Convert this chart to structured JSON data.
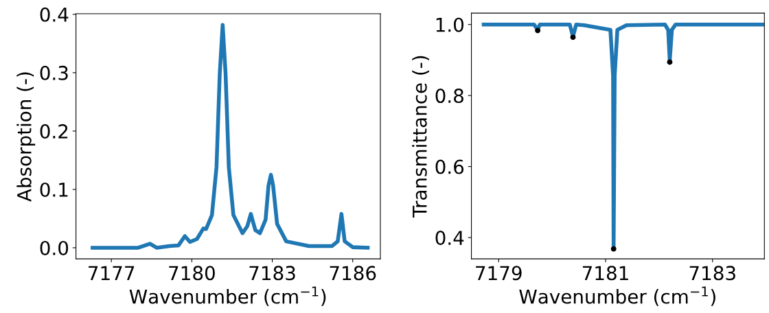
{
  "chart_data": [
    {
      "type": "line",
      "xlabel": "Wavenumber (cm$^{−1}$)",
      "ylabel": "Absorption (-)",
      "xlim": [
        7175.68,
        7187.03
      ],
      "ylim": [
        -0.019,
        0.401
      ],
      "xticks": [
        7177,
        7180,
        7183,
        7186
      ],
      "yticks": [
        {
          "value": 0,
          "label": "0.0"
        },
        0.1,
        0.2,
        0.3,
        0.4
      ],
      "grid": false,
      "marker": "none",
      "line_style": "solid",
      "series": [
        {
          "color": "#1f77b4",
          "x": [
            7176.3,
            7178.0,
            7178.44,
            7178.69,
            7179.16,
            7179.5,
            7179.74,
            7179.93,
            7180.19,
            7180.43,
            7180.53,
            7180.75,
            7180.92,
            7181.04,
            7181.15,
            7181.26,
            7181.38,
            7181.55,
            7181.89,
            7182.07,
            7182.2,
            7182.37,
            7182.54,
            7182.75,
            7182.86,
            7182.95,
            7183.03,
            7183.18,
            7183.52,
            7184.37,
            7185.23,
            7185.44,
            7185.58,
            7185.7,
            7186.0,
            7186.56
          ],
          "values": [
            0.0,
            0.0,
            0.007,
            0.0,
            0.003,
            0.004,
            0.02,
            0.01,
            0.015,
            0.033,
            0.032,
            0.056,
            0.138,
            0.297,
            0.382,
            0.297,
            0.138,
            0.056,
            0.025,
            0.037,
            0.058,
            0.03,
            0.025,
            0.048,
            0.107,
            0.125,
            0.107,
            0.041,
            0.011,
            0.003,
            0.003,
            0.011,
            0.058,
            0.011,
            0.001,
            0.0
          ]
        }
      ]
    },
    {
      "type": "line",
      "xlabel": "Wavenumber (cm$^{−1}$)",
      "ylabel": "Transmittance (-)",
      "xlim": [
        7178.49,
        7183.97
      ],
      "ylim": [
        0.34,
        1.032
      ],
      "xticks": [
        7179,
        7181,
        7183
      ],
      "yticks": [
        0.4,
        0.6,
        0.8,
        {
          "value": 1,
          "label": "1.0"
        }
      ],
      "grid": false,
      "marker": "none",
      "line_style": "solid",
      "series": [
        {
          "color": "#1f77b4",
          "x": [
            7178.72,
            7179.66,
            7179.73,
            7179.77,
            7180.33,
            7180.39,
            7180.45,
            7180.6,
            7181.09,
            7181.14,
            7181.15,
            7181.17,
            7181.22,
            7181.39,
            7182.11,
            7182.17,
            7182.2,
            7182.24,
            7182.31,
            7183.93
          ],
          "values": [
            1.0,
            1.0,
            0.985,
            1.0,
            1.0,
            0.966,
            1.0,
            0.998,
            0.985,
            0.856,
            0.37,
            0.856,
            0.985,
            0.998,
            1.0,
            0.985,
            0.898,
            0.985,
            1.0,
            1.0
          ]
        },
        {
          "type": "scatter",
          "color": "#000000",
          "marker": "circle",
          "x": [
            7179.73,
            7180.39,
            7181.15,
            7182.2
          ],
          "values": [
            0.983,
            0.964,
            0.368,
            0.894
          ]
        }
      ]
    }
  ]
}
